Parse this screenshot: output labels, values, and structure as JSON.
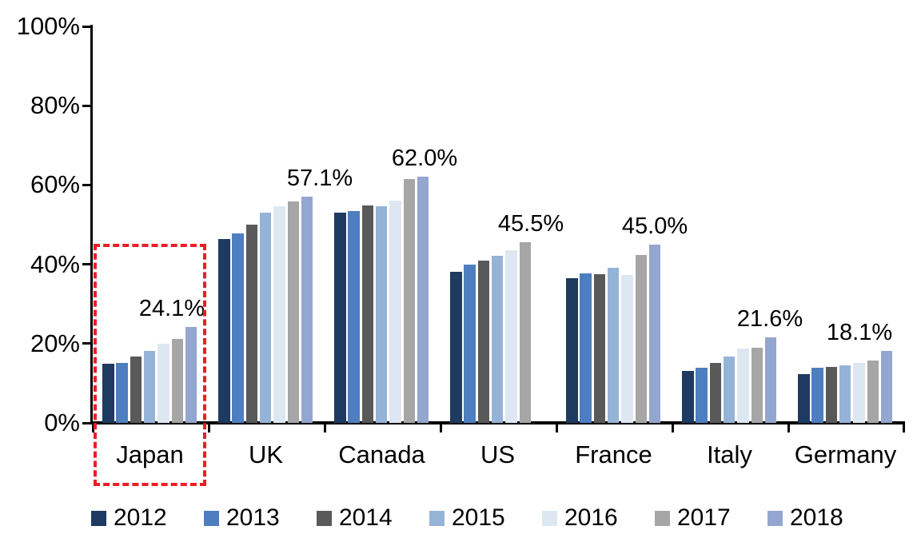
{
  "chart_data": {
    "type": "bar",
    "title": "",
    "xlabel": "",
    "ylabel": "",
    "categories": [
      "Japan",
      "UK",
      "Canada",
      "US",
      "France",
      "Italy",
      "Germany"
    ],
    "series": [
      {
        "name": "2012",
        "color": "#1F3A60",
        "values": [
          15.0,
          46.3,
          53.0,
          38.2,
          36.5,
          13.1,
          12.3
        ]
      },
      {
        "name": "2013",
        "color": "#4D7EBF",
        "values": [
          15.1,
          47.7,
          53.4,
          40.0,
          37.7,
          14.0,
          13.9
        ]
      },
      {
        "name": "2014",
        "color": "#595959",
        "values": [
          16.7,
          49.9,
          54.8,
          41.0,
          37.5,
          15.2,
          14.1
        ]
      },
      {
        "name": "2015",
        "color": "#95B3D7",
        "values": [
          18.1,
          53.1,
          54.6,
          42.1,
          39.2,
          16.8,
          14.5
        ]
      },
      {
        "name": "2016",
        "color": "#DDE7F2",
        "values": [
          20.0,
          54.7,
          56.1,
          43.5,
          37.3,
          18.8,
          15.2
        ]
      },
      {
        "name": "2017",
        "color": "#A6A6A6",
        "values": [
          21.2,
          55.8,
          61.5,
          45.5,
          42.3,
          19.0,
          15.8
        ]
      },
      {
        "name": "2018",
        "color": "#93A6CF",
        "values": [
          24.1,
          57.1,
          62.0,
          null,
          45.0,
          21.6,
          18.1
        ]
      }
    ],
    "value_labels": [
      "24.1%",
      "57.1%",
      "62.0%",
      "45.5%",
      "45.0%",
      "21.6%",
      "18.1%"
    ],
    "y_axis": {
      "min": 0,
      "max": 100,
      "ticks": [
        "0%",
        "20%",
        "40%",
        "60%",
        "80%",
        "100%"
      ],
      "tick_values": [
        0,
        20,
        40,
        60,
        80,
        100
      ]
    },
    "grid": "off",
    "legend_position": "bottom",
    "highlight": {
      "category": "Japan",
      "style": "red-dashed-box",
      "color": "#EE1C25"
    }
  }
}
